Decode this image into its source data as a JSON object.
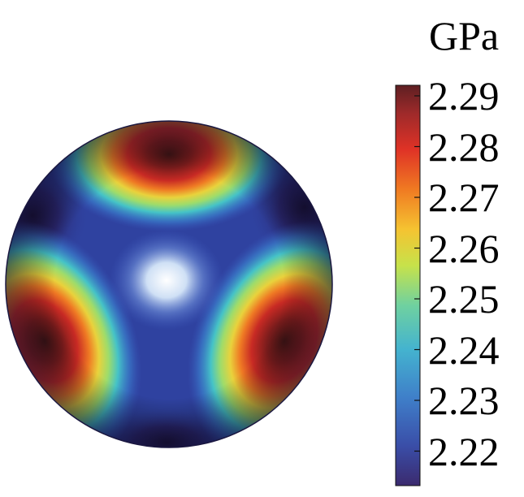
{
  "colorbar": {
    "unit": "GPa",
    "ticks": [
      "2.29",
      "2.28",
      "2.27",
      "2.26",
      "2.25",
      "2.24",
      "2.23",
      "2.22"
    ],
    "colormap": [
      "#3b2a6e",
      "#3a4ea8",
      "#3f7fc9",
      "#44b3cf",
      "#6fd1a0",
      "#c7e24a",
      "#f5c331",
      "#f07a22",
      "#df3226",
      "#9e2a2a",
      "#5e1f22"
    ]
  },
  "sphere": {
    "background_color": "#2f42a0",
    "center_highlight_color": "#ffffff",
    "hotspot_peak_color": "#4a1414"
  }
}
